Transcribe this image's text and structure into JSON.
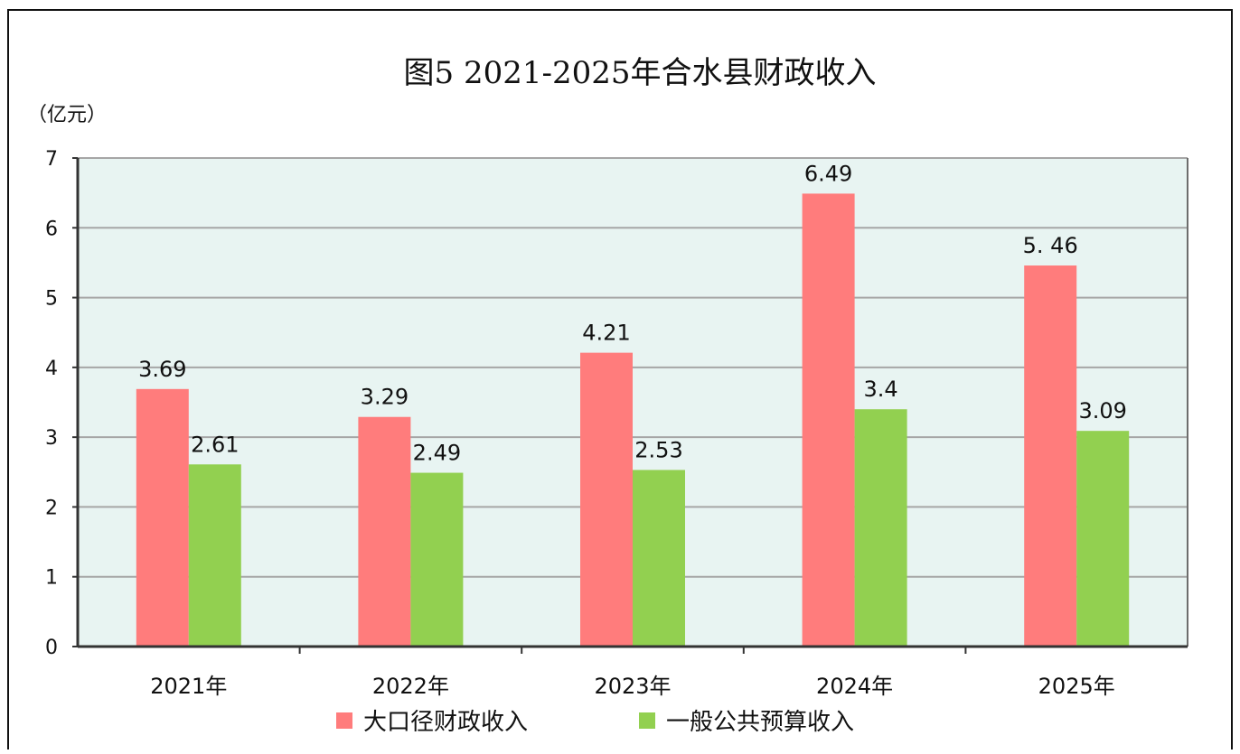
{
  "chart_data": {
    "type": "bar",
    "title": "图5  2021-2025年合水县财政收入",
    "ylabel": "（亿元）",
    "xlabel": "",
    "categories": [
      "2021年",
      "2022年",
      "2023年",
      "2024年",
      "2025年"
    ],
    "series": [
      {
        "name": "大口径财政收入",
        "values": [
          3.69,
          3.29,
          4.21,
          6.49,
          5.46
        ],
        "labels": [
          "3.69",
          "3.29",
          "4.21",
          "6.49",
          "5. 46"
        ],
        "color": "#ff7c7c"
      },
      {
        "name": "一般公共预算收入",
        "values": [
          2.61,
          2.49,
          2.53,
          3.4,
          3.09
        ],
        "labels": [
          "2.61",
          "2.49",
          "2.53",
          "3.4",
          "3.09"
        ],
        "color": "#92d050"
      }
    ],
    "yticks": [
      "0",
      "1",
      "2",
      "3",
      "4",
      "5",
      "6",
      "7"
    ],
    "ylim": [
      0,
      7
    ],
    "grid": true,
    "legend_position": "bottom",
    "plot_background": "#e8f4f2"
  }
}
